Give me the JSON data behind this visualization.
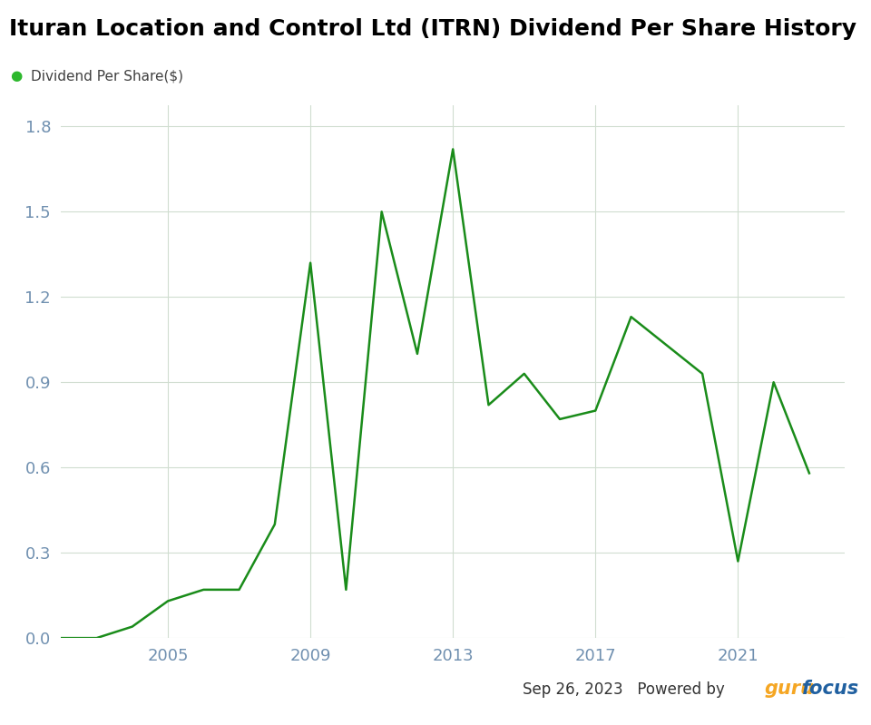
{
  "title": "Ituran Location and Control Ltd (ITRN) Dividend Per Share History",
  "legend_label": "Dividend Per Share($)",
  "line_color": "#1a8c1a",
  "legend_dot_color": "#2db82d",
  "background_color": "#ffffff",
  "plot_bg_color": "#ffffff",
  "grid_color": "#d0ddd0",
  "axis_label_color": "#7090b0",
  "title_color": "#000000",
  "years": [
    2002,
    2003,
    2004,
    2005,
    2006,
    2007,
    2008,
    2009,
    2010,
    2011,
    2012,
    2013,
    2014,
    2015,
    2016,
    2017,
    2018,
    2019,
    2020,
    2021,
    2022,
    2023
  ],
  "values": [
    0.0,
    0.0,
    0.04,
    0.13,
    0.17,
    0.17,
    0.4,
    1.32,
    0.17,
    1.5,
    1.0,
    1.72,
    0.82,
    0.93,
    0.77,
    0.8,
    1.13,
    1.03,
    0.93,
    0.27,
    0.9,
    0.58
  ],
  "xlim": [
    2002,
    2024
  ],
  "ylim": [
    0,
    1.875
  ],
  "yticks": [
    0.0,
    0.3,
    0.6,
    0.9,
    1.2,
    1.5,
    1.8
  ],
  "xticks": [
    2005,
    2009,
    2013,
    2017,
    2021
  ],
  "date_text": "Sep 26, 2023",
  "powered_by_text": "Powered by ",
  "guru_text": "guru",
  "focus_text": "focus",
  "guru_color": "#f5a623",
  "focus_color": "#2060a0"
}
